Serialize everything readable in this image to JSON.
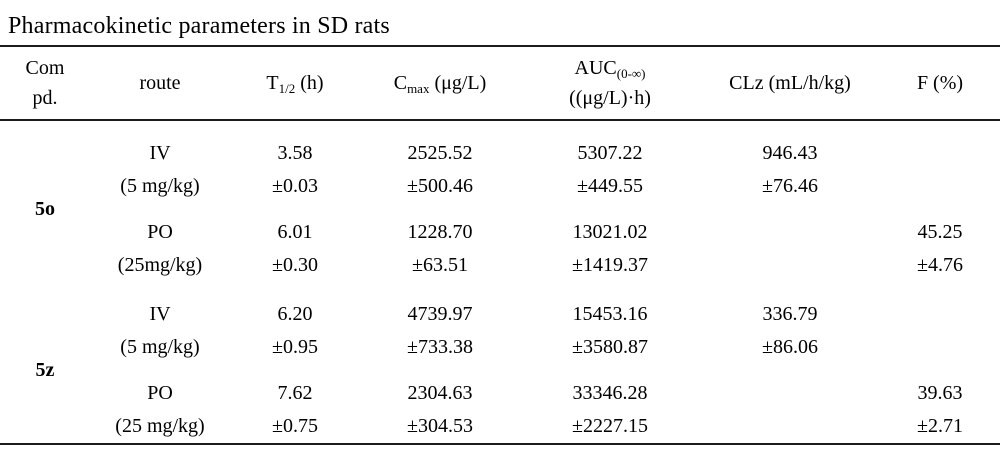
{
  "title": "Pharmacokinetic parameters in SD rats",
  "table": {
    "headers": {
      "compound_line1": "Com",
      "compound_line2": "pd.",
      "route": "route",
      "t12_base": "T",
      "t12_sub": "1/2",
      "t12_unit": " (h)",
      "cmax_base": "C",
      "cmax_sub": "max",
      "cmax_unit": " (μg/L)",
      "auc_base": "AUC",
      "auc_sub": "(0-∞)",
      "auc_unit": "((μg/L)·h)",
      "clz": "CLz (mL/h/kg)",
      "f": "F (%)"
    },
    "groups": [
      {
        "compound": "5o",
        "routes": [
          {
            "route": "IV",
            "dose": "(5 mg/kg)",
            "t12": "3.58",
            "t12_sd": "±0.03",
            "cmax": "2525.52",
            "cmax_sd": "±500.46",
            "auc": "5307.22",
            "auc_sd": "±449.55",
            "clz": "946.43",
            "clz_sd": "±76.46",
            "f": "",
            "f_sd": ""
          },
          {
            "route": "PO",
            "dose": "(25mg/kg)",
            "t12": "6.01",
            "t12_sd": "±0.30",
            "cmax": "1228.70",
            "cmax_sd": "±63.51",
            "auc": "13021.02",
            "auc_sd": "±1419.37",
            "clz": "",
            "clz_sd": "",
            "f": "45.25",
            "f_sd": "±4.76"
          }
        ]
      },
      {
        "compound": "5z",
        "routes": [
          {
            "route": "IV",
            "dose": "(5 mg/kg)",
            "t12": "6.20",
            "t12_sd": "±0.95",
            "cmax": "4739.97",
            "cmax_sd": "±733.38",
            "auc": "15453.16",
            "auc_sd": "±3580.87",
            "clz": "336.79",
            "clz_sd": "±86.06",
            "f": "",
            "f_sd": ""
          },
          {
            "route": "PO",
            "dose": "(25 mg/kg)",
            "t12": "7.62",
            "t12_sd": "±0.75",
            "cmax": "2304.63",
            "cmax_sd": "±304.53",
            "auc": "33346.28",
            "auc_sd": "±2227.15",
            "clz": "",
            "clz_sd": "",
            "f": "39.63",
            "f_sd": "±2.71"
          }
        ]
      }
    ]
  }
}
